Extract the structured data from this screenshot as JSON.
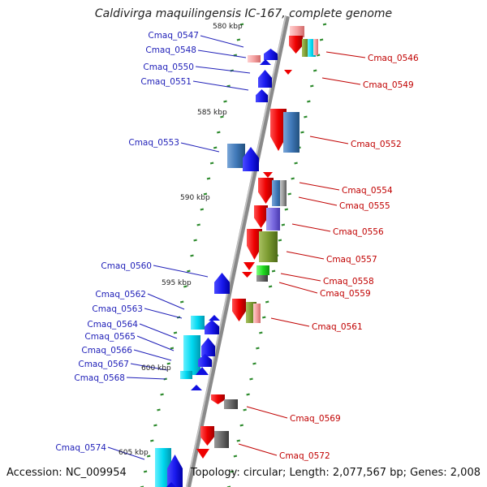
{
  "title": "Caldivirga maquilingensis IC-167, complete genome",
  "footer": {
    "accession": "Accession: NC_009954",
    "topology": "Topology: circular; Length: 2,077,567 bp; Genes: 2,008"
  },
  "colors": {
    "left_label": "#1f1fb8",
    "right_label": "#c00000",
    "backbone": "#8a8a8a",
    "tick": "#2e8b2e"
  },
  "scale_labels": [
    "580 kbp",
    "585 kbp",
    "590 kbp",
    "595 kbp",
    "600 kbp",
    "605 kbp"
  ],
  "left_genes": [
    "Cmaq_0547",
    "Cmaq_0548",
    "Cmaq_0550",
    "Cmaq_0551",
    "Cmaq_0553",
    "Cmaq_0560",
    "Cmaq_0562",
    "Cmaq_0563",
    "Cmaq_0564",
    "Cmaq_0565",
    "Cmaq_0566",
    "Cmaq_0567",
    "Cmaq_0568",
    "Cmaq_0574"
  ],
  "right_genes": [
    "Cmaq_0546",
    "Cmaq_0549",
    "Cmaq_0552",
    "Cmaq_0554",
    "Cmaq_0555",
    "Cmaq_0556",
    "Cmaq_0557",
    "Cmaq_0558",
    "Cmaq_0559",
    "Cmaq_0561",
    "Cmaq_0569",
    "Cmaq_0572"
  ]
}
